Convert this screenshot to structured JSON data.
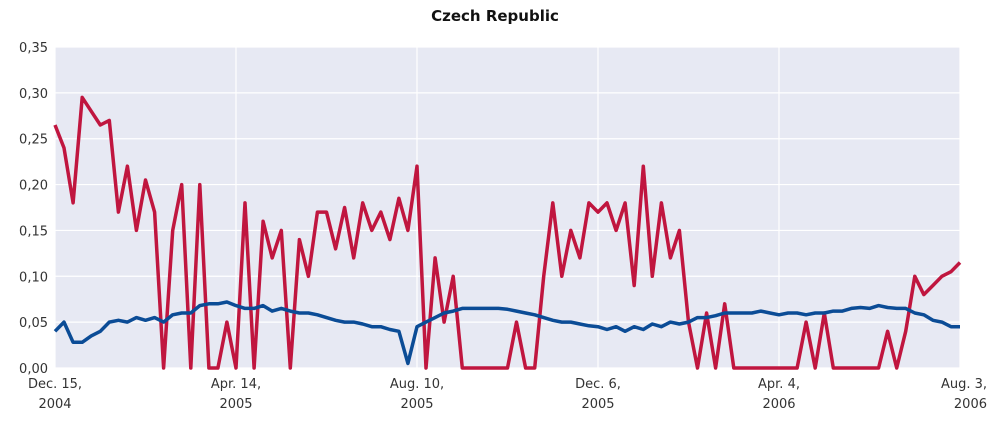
{
  "chart_data": {
    "type": "line",
    "title": "Czech Republic",
    "categories": [
      "Dec. 15,\n2004",
      null,
      null,
      null,
      null,
      null,
      null,
      null,
      null,
      null,
      null,
      null,
      null,
      null,
      null,
      null,
      null,
      null,
      null,
      null,
      "Apr. 14,\n2005",
      null,
      null,
      null,
      null,
      null,
      null,
      null,
      null,
      null,
      null,
      null,
      null,
      null,
      null,
      null,
      null,
      null,
      null,
      null,
      "Aug. 10,\n2005",
      null,
      null,
      null,
      null,
      null,
      null,
      null,
      null,
      null,
      null,
      null,
      null,
      null,
      null,
      null,
      null,
      null,
      null,
      null,
      "Dec. 6,\n2005",
      null,
      null,
      null,
      null,
      null,
      null,
      null,
      null,
      null,
      null,
      null,
      null,
      null,
      null,
      null,
      null,
      null,
      null,
      null,
      "Apr. 4,\n2006",
      null,
      null,
      null,
      null,
      null,
      null,
      null,
      null,
      null,
      null,
      null,
      null,
      null,
      null,
      null,
      null,
      null,
      null,
      null,
      "Aug. 3,\n2006"
    ],
    "series": [
      {
        "color": "#c0163f",
        "values": [
          0.265,
          0.24,
          0.18,
          0.295,
          0.28,
          0.265,
          0.27,
          0.17,
          0.22,
          0.15,
          0.205,
          0.17,
          0,
          0.15,
          0.2,
          0,
          0.2,
          0,
          0,
          0.05,
          0,
          0.18,
          0,
          0.16,
          0.12,
          0.15,
          0,
          0.14,
          0.1,
          0.17,
          0.17,
          0.13,
          0.175,
          0.12,
          0.18,
          0.15,
          0.17,
          0.14,
          0.185,
          0.15,
          0.22,
          0,
          0.12,
          0.05,
          0.1,
          0,
          0,
          0,
          0,
          0,
          0,
          0.05,
          0,
          0,
          0.1,
          0.18,
          0.1,
          0.15,
          0.12,
          0.18,
          0.17,
          0.18,
          0.15,
          0.18,
          0.09,
          0.22,
          0.1,
          0.18,
          0.12,
          0.15,
          0.05,
          0,
          0.06,
          0,
          0.07,
          0,
          0,
          0,
          0,
          0,
          0,
          0,
          0,
          0.05,
          0,
          0.06,
          0,
          0,
          0,
          0,
          0,
          0,
          0.04,
          0,
          0.04,
          0.1,
          0.08,
          0.09,
          0.1,
          0.105,
          0.115
        ]
      },
      {
        "color": "#0b4c96",
        "values": [
          0.04,
          0.05,
          0.028,
          0.028,
          0.035,
          0.04,
          0.05,
          0.052,
          0.05,
          0.055,
          0.052,
          0.055,
          0.05,
          0.058,
          0.06,
          0.06,
          0.068,
          0.07,
          0.07,
          0.072,
          0.068,
          0.065,
          0.065,
          0.068,
          0.062,
          0.065,
          0.062,
          0.06,
          0.06,
          0.058,
          0.055,
          0.052,
          0.05,
          0.05,
          0.048,
          0.045,
          0.045,
          0.042,
          0.04,
          0.005,
          0.045,
          0.05,
          0.055,
          0.06,
          0.062,
          0.065,
          0.065,
          0.065,
          0.065,
          0.065,
          0.064,
          0.062,
          0.06,
          0.058,
          0.055,
          0.052,
          0.05,
          0.05,
          0.048,
          0.046,
          0.045,
          0.042,
          0.045,
          0.04,
          0.045,
          0.042,
          0.048,
          0.045,
          0.05,
          0.048,
          0.05,
          0.055,
          0.055,
          0.057,
          0.06,
          0.06,
          0.06,
          0.06,
          0.062,
          0.06,
          0.058,
          0.06,
          0.06,
          0.058,
          0.06,
          0.06,
          0.062,
          0.062,
          0.065,
          0.066,
          0.065,
          0.068,
          0.066,
          0.065,
          0.065,
          0.06,
          0.058,
          0.052,
          0.05,
          0.045,
          0.045
        ]
      }
    ],
    "ylim": [
      0,
      0.35
    ],
    "yticks": [
      {
        "value": 0,
        "label": "0,00"
      },
      {
        "value": 0.05,
        "label": "0,05"
      },
      {
        "value": 0.1,
        "label": "0,10"
      },
      {
        "value": 0.15,
        "label": "0,15"
      },
      {
        "value": 0.2,
        "label": "0,20"
      },
      {
        "value": 0.25,
        "label": "0,25"
      },
      {
        "value": 0.3,
        "label": "0,30"
      },
      {
        "value": 0.35,
        "label": "0,35"
      }
    ],
    "grid": true
  }
}
